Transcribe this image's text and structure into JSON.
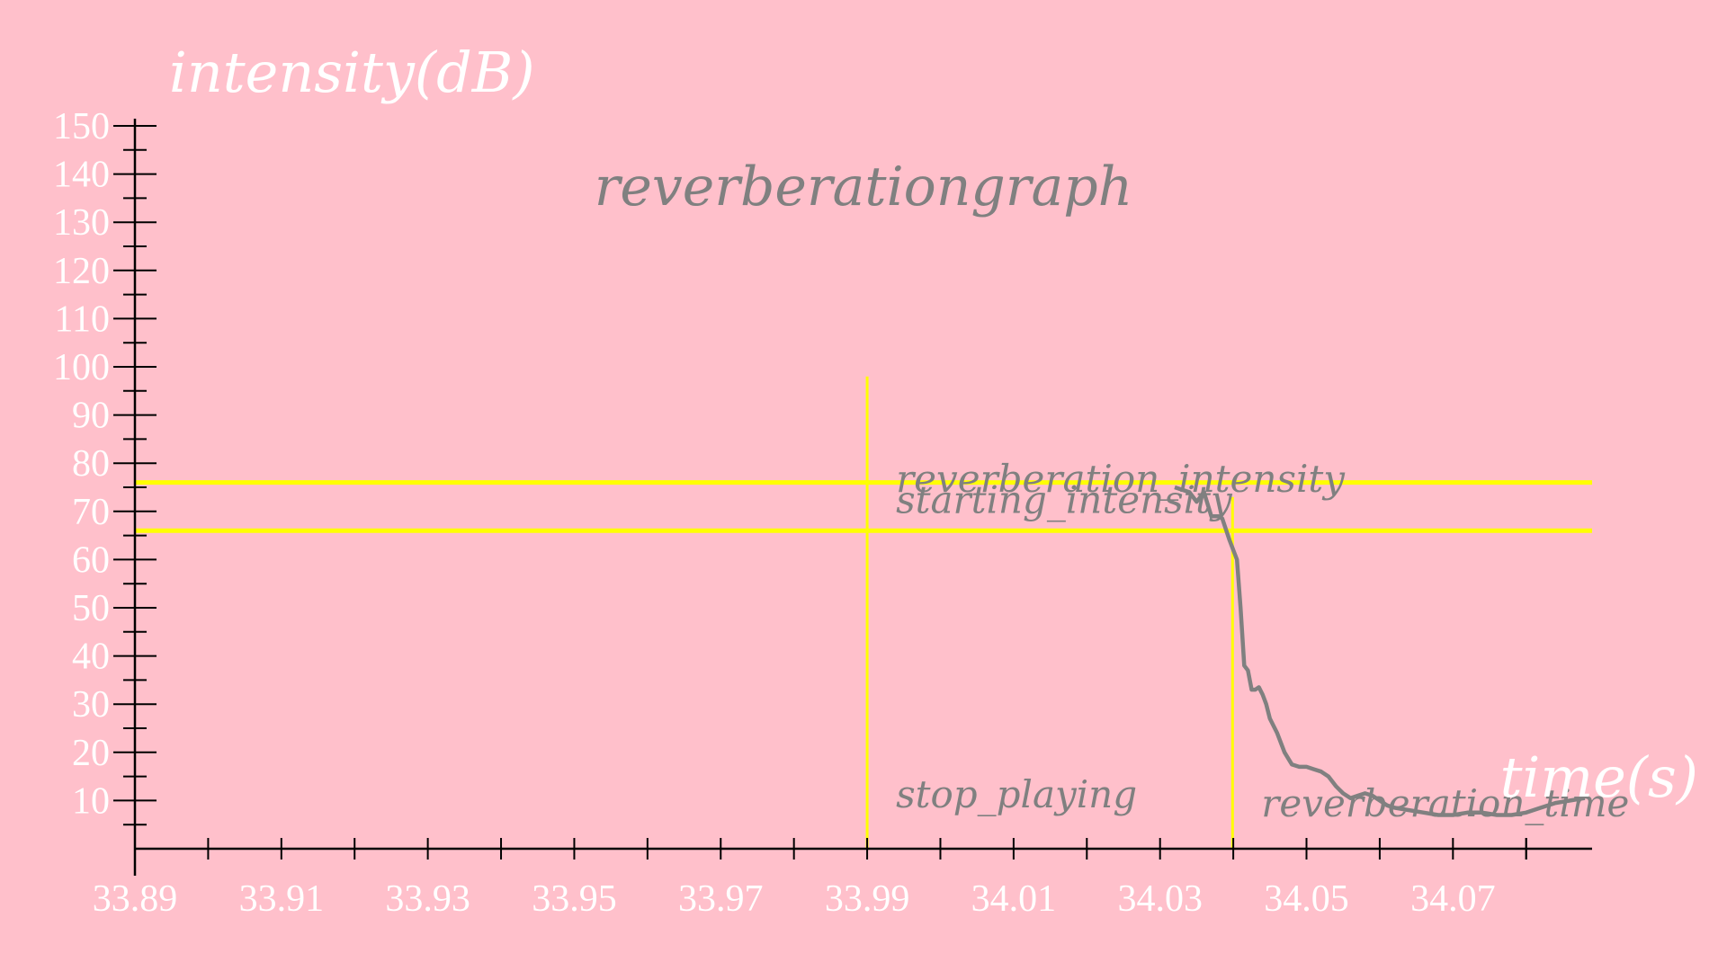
{
  "chart_data": {
    "type": "line",
    "title": "reverberationgraph",
    "xlabel": "time(s)",
    "ylabel": "intensity(dB)",
    "xlim": [
      33.89,
      34.089
    ],
    "ylim": [
      0,
      150
    ],
    "x_ticks": [
      33.89,
      33.91,
      33.93,
      33.95,
      33.97,
      33.99,
      34.01,
      34.03,
      34.05,
      34.07
    ],
    "x_tick_labels": [
      "33.89",
      "33.91",
      "33.93",
      "33.95",
      "33.97",
      "33.99",
      "34.01",
      "34.03",
      "34.05",
      "34.07"
    ],
    "y_ticks": [
      10,
      20,
      30,
      40,
      50,
      60,
      70,
      80,
      90,
      100,
      110,
      120,
      130,
      140,
      150
    ],
    "y_tick_labels": [
      "10",
      "20",
      "30",
      "40",
      "50",
      "60",
      "70",
      "80",
      "90",
      "100",
      "110",
      "120",
      "130",
      "140",
      "150"
    ],
    "series": [
      {
        "x": [
          34.032,
          34.034,
          34.035,
          34.036,
          34.037,
          34.038,
          34.0385,
          34.0395,
          34.0405,
          34.041,
          34.0415,
          34.042,
          34.0425,
          34.043,
          34.0435,
          34.044,
          34.0445,
          34.045,
          34.046,
          34.047,
          34.048,
          34.049,
          34.05,
          34.051,
          34.052,
          34.053,
          34.054,
          34.055,
          34.056,
          34.057,
          34.058,
          34.059,
          34.06,
          34.061,
          34.062,
          34.064,
          34.066,
          34.068,
          34.07,
          34.072,
          34.074,
          34.076,
          34.078,
          34.08,
          34.082,
          34.084,
          34.086,
          34.088
        ],
        "y": [
          75,
          74,
          72,
          74,
          69,
          69,
          68.5,
          64,
          60,
          50,
          38,
          37,
          33,
          33,
          33.5,
          32,
          30,
          27,
          24,
          20,
          17.5,
          17,
          17,
          16.5,
          16,
          15,
          13,
          11.5,
          10.5,
          11,
          11.5,
          11,
          10,
          9,
          8.5,
          8,
          7.5,
          7,
          7,
          7.5,
          7.5,
          7,
          7,
          7.5,
          8.5,
          9.5,
          10,
          10.5
        ],
        "color": "#808080"
      }
    ],
    "h_lines": [
      {
        "label": "starting_intensity",
        "y": 76,
        "color": "#ffff00"
      },
      {
        "label": "reverberation_intensity",
        "y": 66,
        "color": "#ffff00"
      }
    ],
    "v_lines": [
      {
        "label": "stop_playing",
        "x": 33.99,
        "y_top": 98,
        "color": "#ffff00"
      },
      {
        "label": "reverberation_time",
        "x": 34.0399,
        "y_top": 73,
        "color": "#ffff00"
      }
    ],
    "colors": {
      "background": "#ffc0cb",
      "axis": "#000000",
      "tick_label": "#ffffff",
      "axis_label": "#ffffff",
      "title": "#808080",
      "annotation": "#808080"
    }
  }
}
